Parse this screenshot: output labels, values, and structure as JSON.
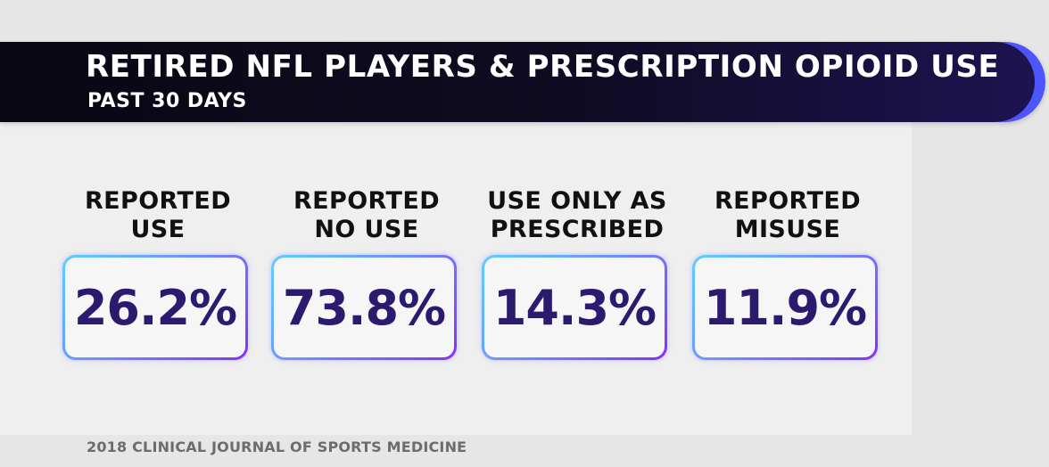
{
  "header": {
    "title": "RETIRED NFL PLAYERS & PRESCRIPTION OPIOID USE",
    "subtitle": "PAST 30 DAYS"
  },
  "stats": [
    {
      "label_line1": "REPORTED",
      "label_line2": "USE",
      "value": "26.2%"
    },
    {
      "label_line1": "REPORTED",
      "label_line2": "NO USE",
      "value": "73.8%"
    },
    {
      "label_line1": "USE ONLY AS",
      "label_line2": "PRESCRIBED",
      "value": "14.3%"
    },
    {
      "label_line1": "REPORTED",
      "label_line2": "MISUSE",
      "value": "11.9%"
    }
  ],
  "footer": {
    "source": "2018 CLINICAL JOURNAL OF SPORTS MEDICINE"
  },
  "colors": {
    "banner_bg": "#0f0b22",
    "accent_gradient_start": "#5fd0ff",
    "accent_gradient_end": "#8a2ff5",
    "value_text": "#2b1a6e"
  }
}
